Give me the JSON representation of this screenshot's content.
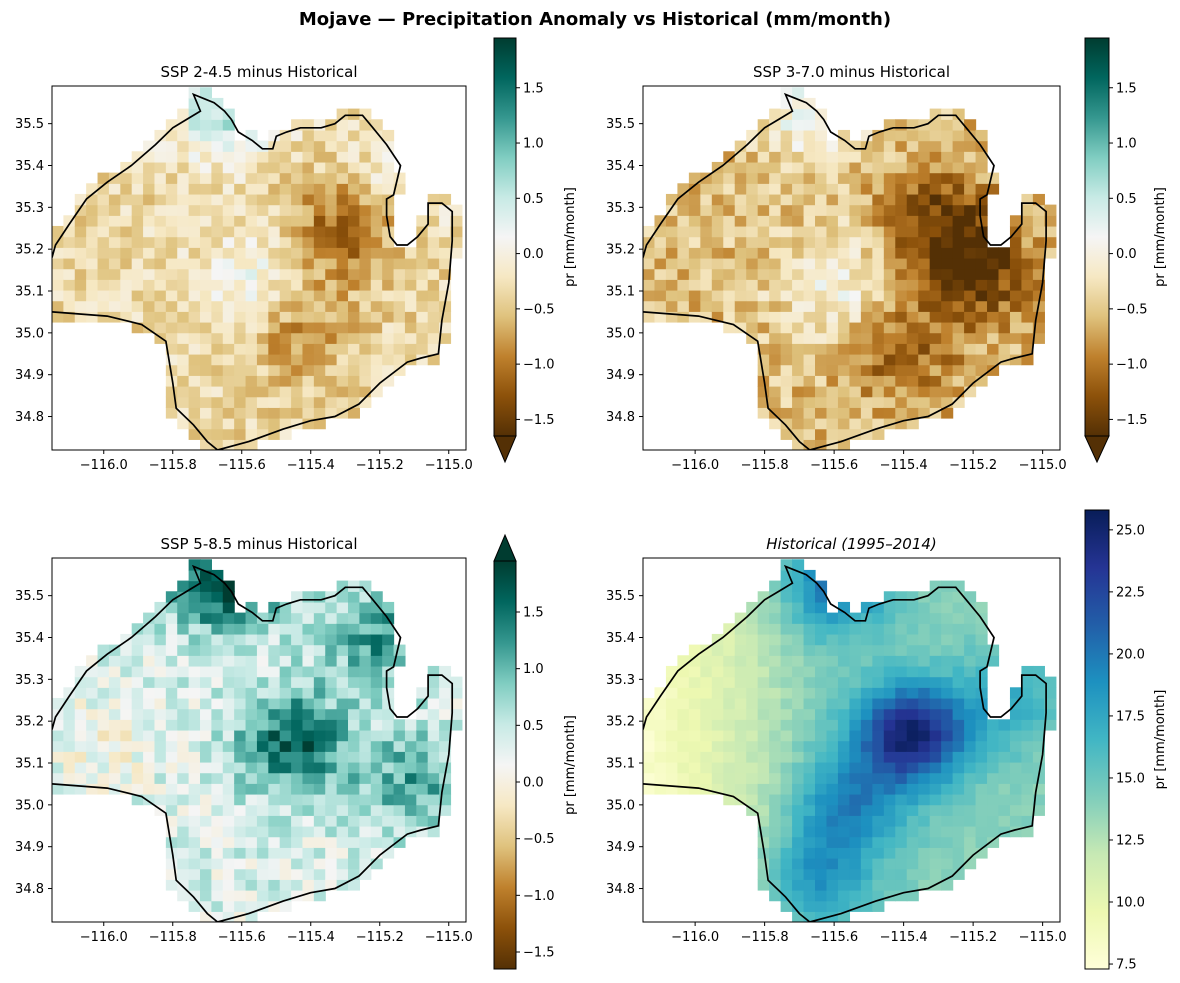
{
  "figure": {
    "title": "Mojave — Precipitation Anomaly vs Historical (mm/month)"
  },
  "chart_data": [
    {
      "type": "heatmap",
      "title": "SSP 2-4.5 minus Historical",
      "title_style": "normal",
      "colormap": "BrBG",
      "value_range": [
        -1.65,
        1.95
      ],
      "colorbar": {
        "label": "pr [mm/month]",
        "ticks": [
          -1.5,
          -1.0,
          -0.5,
          0.0,
          0.5,
          1.0,
          1.5
        ],
        "tick_labels": [
          "−1.5",
          "−1.0",
          "−0.5",
          "0.0",
          "0.5",
          "1.0",
          "1.5"
        ],
        "extend": "min"
      },
      "x_ticks": [
        -116.0,
        -115.8,
        -115.6,
        -115.4,
        -115.2,
        -115.0
      ],
      "x_tick_labels": [
        "−116.0",
        "−115.8",
        "−115.6",
        "−115.4",
        "−115.2",
        "−115.0"
      ],
      "y_ticks": [
        34.8,
        34.9,
        35.0,
        35.1,
        35.2,
        35.3,
        35.4,
        35.5
      ],
      "y_tick_labels": [
        "34.8",
        "34.9",
        "35.0",
        "35.1",
        "35.2",
        "35.3",
        "35.4",
        "35.5"
      ],
      "xlim": [
        -116.15,
        -114.95
      ],
      "ylim": [
        34.72,
        35.59
      ],
      "field": {
        "base": -0.35,
        "hotspots": [
          [
            -115.3,
            35.25,
            -0.9
          ],
          [
            -115.45,
            35.02,
            -0.6
          ],
          [
            -115.55,
            35.12,
            0.6
          ],
          [
            -115.65,
            35.54,
            1.0
          ],
          [
            -115.15,
            35.35,
            0.4
          ]
        ],
        "noise": 0.32
      }
    },
    {
      "type": "heatmap",
      "title": "SSP 3-7.0 minus Historical",
      "title_style": "normal",
      "colormap": "BrBG",
      "value_range": [
        -1.65,
        1.95
      ],
      "colorbar": {
        "label": "pr [mm/month]",
        "ticks": [
          -1.5,
          -1.0,
          -0.5,
          0.0,
          0.5,
          1.0,
          1.5
        ],
        "tick_labels": [
          "−1.5",
          "−1.0",
          "−0.5",
          "0.0",
          "0.5",
          "1.0",
          "1.5"
        ],
        "extend": "min"
      },
      "x_ticks": [
        -116.0,
        -115.8,
        -115.6,
        -115.4,
        -115.2,
        -115.0
      ],
      "x_tick_labels": [
        "−116.0",
        "−115.8",
        "−115.6",
        "−115.4",
        "−115.2",
        "−115.0"
      ],
      "y_ticks": [
        34.8,
        34.9,
        35.0,
        35.1,
        35.2,
        35.3,
        35.4,
        35.5
      ],
      "y_tick_labels": [
        "34.8",
        "34.9",
        "35.0",
        "35.1",
        "35.2",
        "35.3",
        "35.4",
        "35.5"
      ],
      "xlim": [
        -116.15,
        -114.95
      ],
      "ylim": [
        34.72,
        35.59
      ],
      "field": {
        "base": -0.55,
        "hotspots": [
          [
            -115.2,
            35.15,
            -1.1
          ],
          [
            -115.3,
            35.28,
            -0.8
          ],
          [
            -115.4,
            34.95,
            -0.6
          ],
          [
            -115.6,
            35.12,
            0.6
          ],
          [
            -115.65,
            35.54,
            0.8
          ]
        ],
        "noise": 0.35
      }
    },
    {
      "type": "heatmap",
      "title": "SSP 5-8.5 minus Historical",
      "title_style": "normal",
      "colormap": "BrBG",
      "value_range": [
        -1.65,
        1.95
      ],
      "colorbar": {
        "label": "pr [mm/month]",
        "ticks": [
          -1.5,
          -1.0,
          -0.5,
          0.0,
          0.5,
          1.0,
          1.5
        ],
        "tick_labels": [
          "−1.5",
          "−1.0",
          "−0.5",
          "0.0",
          "0.5",
          "1.0",
          "1.5"
        ],
        "extend": "max"
      },
      "x_ticks": [
        -116.0,
        -115.8,
        -115.6,
        -115.4,
        -115.2,
        -115.0
      ],
      "x_tick_labels": [
        "−116.0",
        "−115.8",
        "−115.6",
        "−115.4",
        "−115.2",
        "−115.0"
      ],
      "y_ticks": [
        34.8,
        34.9,
        35.0,
        35.1,
        35.2,
        35.3,
        35.4,
        35.5
      ],
      "y_tick_labels": [
        "34.8",
        "34.9",
        "35.0",
        "35.1",
        "35.2",
        "35.3",
        "35.4",
        "35.5"
      ],
      "xlim": [
        -116.15,
        -114.95
      ],
      "ylim": [
        34.72,
        35.59
      ],
      "field": {
        "base": 0.35,
        "hotspots": [
          [
            -115.45,
            35.15,
            1.3
          ],
          [
            -115.65,
            35.54,
            1.6
          ],
          [
            -115.2,
            35.4,
            0.9
          ],
          [
            -115.1,
            35.05,
            0.8
          ],
          [
            -116.0,
            35.15,
            -0.3
          ]
        ],
        "noise": 0.38
      }
    },
    {
      "type": "heatmap",
      "title": "Historical (1995–2014)",
      "title_style": "italic",
      "colormap": "YlGnBu",
      "value_range": [
        7.3,
        25.8
      ],
      "colorbar": {
        "label": "pr [mm/month]",
        "ticks": [
          7.5,
          10.0,
          12.5,
          15.0,
          17.5,
          20.0,
          22.5,
          25.0
        ],
        "tick_labels": [
          "7.5",
          "10.0",
          "12.5",
          "15.0",
          "17.5",
          "20.0",
          "22.5",
          "25.0"
        ],
        "extend": "neither"
      },
      "x_ticks": [
        -116.0,
        -115.8,
        -115.6,
        -115.4,
        -115.2,
        -115.0
      ],
      "x_tick_labels": [
        "−116.0",
        "−115.8",
        "−115.6",
        "−115.4",
        "−115.2",
        "−115.0"
      ],
      "y_ticks": [
        34.8,
        34.9,
        35.0,
        35.1,
        35.2,
        35.3,
        35.4,
        35.5
      ],
      "y_tick_labels": [
        "34.8",
        "34.9",
        "35.0",
        "35.1",
        "35.2",
        "35.3",
        "35.4",
        "35.5"
      ],
      "xlim": [
        -116.15,
        -114.95
      ],
      "ylim": [
        34.72,
        35.59
      ],
      "field": {
        "base": 14.0,
        "hotspots": [
          [
            -115.38,
            35.17,
            11.0
          ],
          [
            -115.55,
            35.0,
            5.0
          ],
          [
            -115.65,
            34.83,
            4.5
          ],
          [
            -115.6,
            35.53,
            6.0
          ],
          [
            -115.1,
            35.25,
            3.0
          ]
        ],
        "west_gradient": 6.0,
        "noise": 0.6
      }
    }
  ],
  "region": {
    "boundary": [
      [
        -116.15,
        35.05
      ],
      [
        -115.99,
        35.04
      ],
      [
        -115.89,
        35.02
      ],
      [
        -115.82,
        34.98
      ],
      [
        -115.8,
        34.88
      ],
      [
        -115.79,
        34.82
      ],
      [
        -115.74,
        34.78
      ],
      [
        -115.7,
        34.74
      ],
      [
        -115.67,
        34.72
      ],
      [
        -115.58,
        34.74
      ],
      [
        -115.48,
        34.77
      ],
      [
        -115.4,
        34.79
      ],
      [
        -115.33,
        34.8
      ],
      [
        -115.26,
        34.83
      ],
      [
        -115.2,
        34.88
      ],
      [
        -115.12,
        34.93
      ],
      [
        -115.08,
        34.94
      ],
      [
        -115.03,
        34.95
      ],
      [
        -115.02,
        35.03
      ],
      [
        -115.0,
        35.12
      ],
      [
        -114.99,
        35.22
      ],
      [
        -114.99,
        35.29
      ],
      [
        -115.02,
        35.31
      ],
      [
        -115.06,
        35.31
      ],
      [
        -115.06,
        35.26
      ],
      [
        -115.09,
        35.23
      ],
      [
        -115.12,
        35.21
      ],
      [
        -115.15,
        35.21
      ],
      [
        -115.17,
        35.23
      ],
      [
        -115.18,
        35.28
      ],
      [
        -115.18,
        35.32
      ],
      [
        -115.16,
        35.33
      ],
      [
        -115.14,
        35.4
      ],
      [
        -115.18,
        35.45
      ],
      [
        -115.22,
        35.49
      ],
      [
        -115.25,
        35.52
      ],
      [
        -115.3,
        35.52
      ],
      [
        -115.33,
        35.5
      ],
      [
        -115.37,
        35.49
      ],
      [
        -115.43,
        35.49
      ],
      [
        -115.47,
        35.48
      ],
      [
        -115.5,
        35.47
      ],
      [
        -115.51,
        35.44
      ],
      [
        -115.54,
        35.44
      ],
      [
        -115.57,
        35.46
      ],
      [
        -115.61,
        35.48
      ],
      [
        -115.63,
        35.51
      ],
      [
        -115.65,
        35.53
      ],
      [
        -115.68,
        35.55
      ],
      [
        -115.71,
        35.56
      ],
      [
        -115.74,
        35.57
      ],
      [
        -115.72,
        35.53
      ],
      [
        -115.76,
        35.51
      ],
      [
        -115.8,
        35.49
      ],
      [
        -115.85,
        35.45
      ],
      [
        -115.92,
        35.4
      ],
      [
        -115.99,
        35.36
      ],
      [
        -116.05,
        35.32
      ],
      [
        -116.1,
        35.26
      ],
      [
        -116.14,
        35.21
      ],
      [
        -116.15,
        35.18
      ]
    ],
    "no_data_cells": [
      [
        -115.13,
        35.23
      ],
      [
        -115.61,
        35.48
      ],
      [
        -115.14,
        35.41
      ]
    ]
  }
}
